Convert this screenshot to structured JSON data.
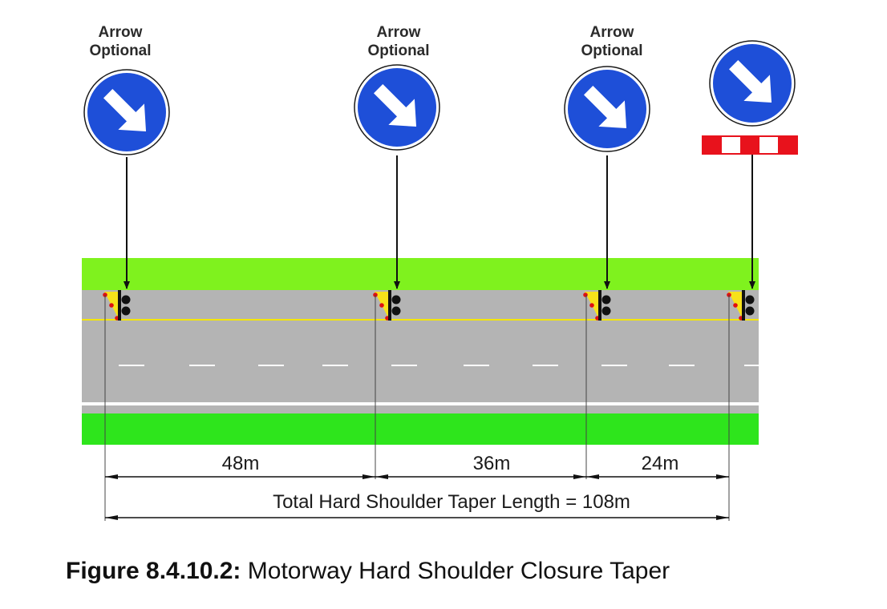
{
  "signs": [
    {
      "label_line1": "Arrow",
      "label_line2": "Optional",
      "type": "keep-right-arrow"
    },
    {
      "label_line1": "Arrow",
      "label_line2": "Optional",
      "type": "keep-right-arrow"
    },
    {
      "label_line1": "Arrow",
      "label_line2": "Optional",
      "type": "keep-right-arrow"
    },
    {
      "label_line1": "",
      "label_line2": "",
      "type": "keep-right-arrow-with-barrier-board"
    }
  ],
  "dimensions": {
    "segment_1": "48m",
    "segment_2": "36m",
    "segment_3": "24m",
    "total": "Total Hard Shoulder Taper Length = 108m"
  },
  "caption": {
    "number": "Figure 8.4.10.2:",
    "title": "Motorway Hard Shoulder Closure Taper"
  },
  "colors": {
    "verge": "#7ff21e",
    "verge_lower": "#2ee51c",
    "carriageway": "#b4b4b4",
    "hard_shoulder_line": "#f5e600",
    "sign_blue": "#1e4fd8",
    "barrier_red": "#e8121c",
    "cone_red": "#e01010",
    "cone_yellow": "#f7e21a"
  },
  "icons": [
    "keep-right-sign-icon",
    "barrier-board-icon",
    "lamp-icon",
    "cone-icon"
  ]
}
